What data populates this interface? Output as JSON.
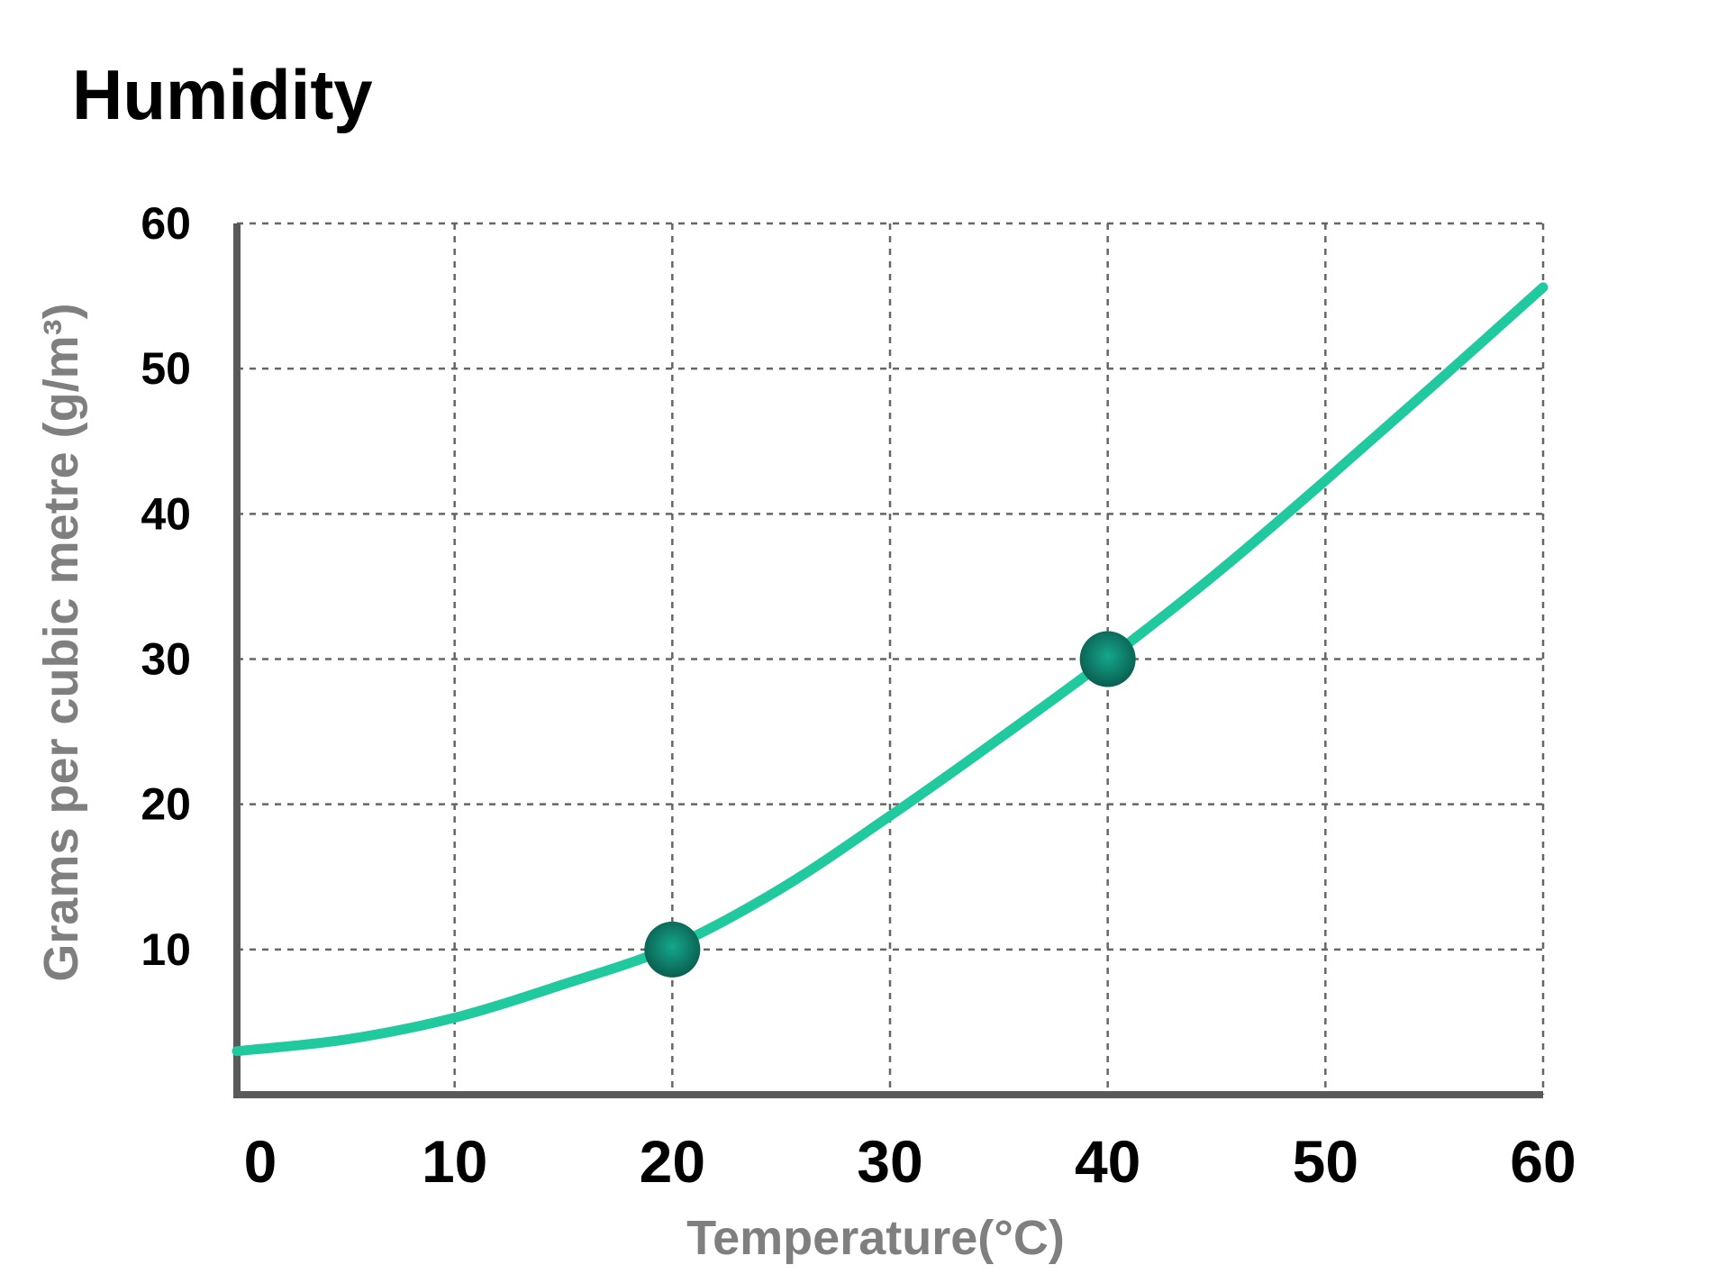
{
  "chart_data": {
    "type": "line",
    "title": "Humidity",
    "xlabel": "Temperature(°C)",
    "ylabel": "Grams per cubic metre (g/m³)",
    "xlim": [
      0,
      60
    ],
    "ylim": [
      0,
      60
    ],
    "x_ticks": [
      0,
      10,
      20,
      30,
      40,
      50,
      60
    ],
    "y_ticks": [
      10,
      20,
      30,
      40,
      50,
      60
    ],
    "x_tick_labels": [
      "0",
      "10",
      "20",
      "30",
      "40",
      "50",
      "60"
    ],
    "y_tick_labels": [
      "10",
      "20",
      "30",
      "40",
      "50",
      "60"
    ],
    "grid": true,
    "series": [
      {
        "x": [
          0,
          5,
          10,
          15,
          20,
          25,
          30,
          35,
          40,
          45,
          50,
          55,
          60
        ],
        "y": [
          3.0,
          3.8,
          5.3,
          7.6,
          10.2,
          14.2,
          19.2,
          24.5,
          30.0,
          35.9,
          42.3,
          48.9,
          55.6
        ],
        "color": "#20c99e"
      }
    ],
    "markers": [
      {
        "x": 20,
        "y": 10
      },
      {
        "x": 40,
        "y": 30
      }
    ],
    "colors": {
      "line": "#20c99e",
      "marker": "#0f8a74",
      "marker_dark": "#0a5e50",
      "axis": "#595959",
      "grid": "#666666",
      "axis_title": "#7f7f7f"
    }
  }
}
